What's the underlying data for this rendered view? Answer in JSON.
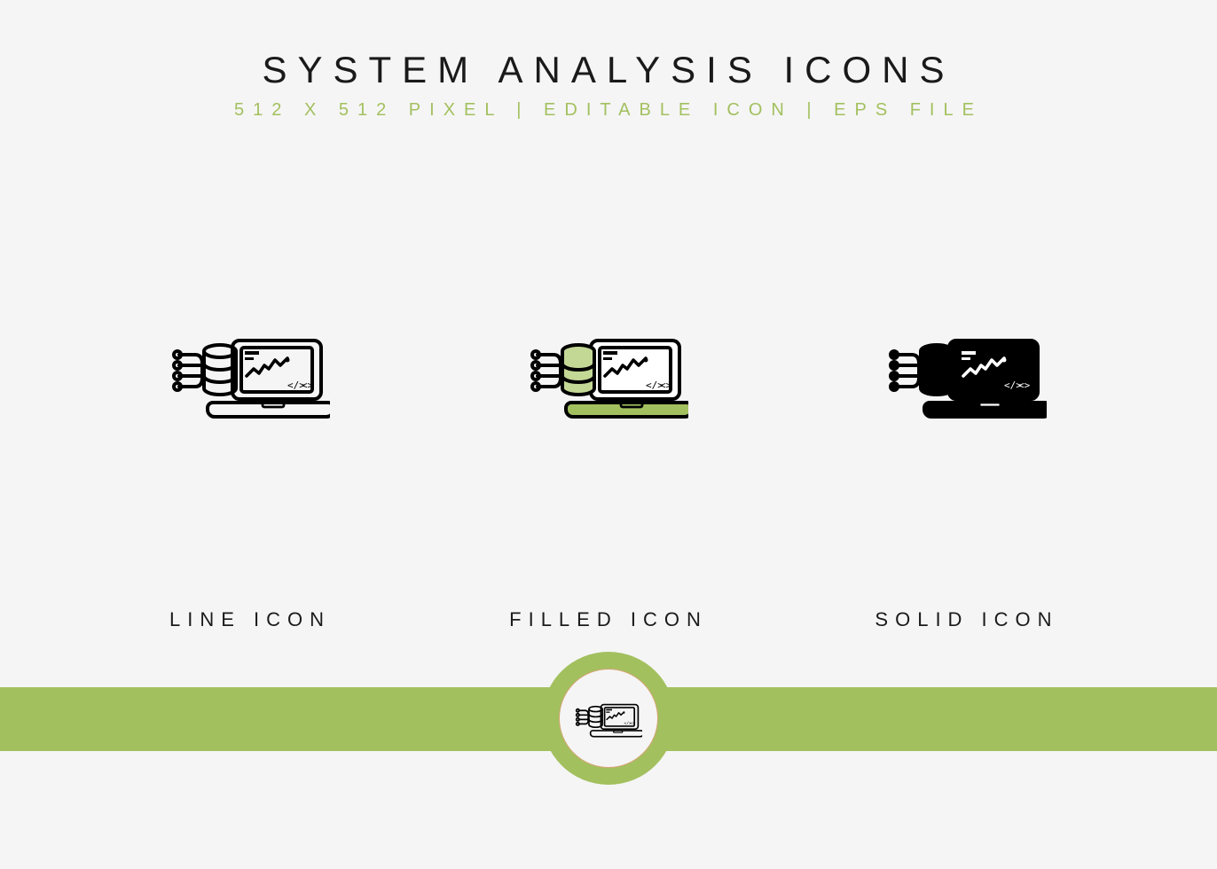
{
  "header": {
    "title": "SYSTEM ANALYSIS ICONS",
    "subtitle": "512 X 512 PIXEL | EDITABLE ICON | EPS FILE"
  },
  "colors": {
    "background": "#f5f5f5",
    "text_primary": "#1a1a1a",
    "accent": "#a3c05f",
    "accent_fill": "#c4d896",
    "stroke": "#000000",
    "white": "#ffffff",
    "badge_border": "#d4a574"
  },
  "typography": {
    "title_fontsize": 42,
    "title_letterspacing": 12,
    "subtitle_fontsize": 20,
    "subtitle_letterspacing": 10,
    "label_fontsize": 22,
    "label_letterspacing": 8
  },
  "icons": [
    {
      "variant": "line",
      "label": "LINE ICON",
      "stroke": "#000000",
      "fill": "none",
      "body_fill": "none"
    },
    {
      "variant": "filled",
      "label": "FILLED ICON",
      "stroke": "#000000",
      "fill": "#c4d896",
      "body_fill": "#a3c05f"
    },
    {
      "variant": "solid",
      "label": "SOLID ICON",
      "stroke": "#000000",
      "fill": "#000000",
      "body_fill": "#000000"
    }
  ],
  "footer": {
    "band_color": "#a3c05f",
    "band_height": 72,
    "badge_outer_diameter": 150,
    "badge_inner_diameter": 112,
    "badge_outer_color": "#a3c05f",
    "badge_inner_bg": "#f5f5f5",
    "badge_inner_border": "#d4a574"
  }
}
